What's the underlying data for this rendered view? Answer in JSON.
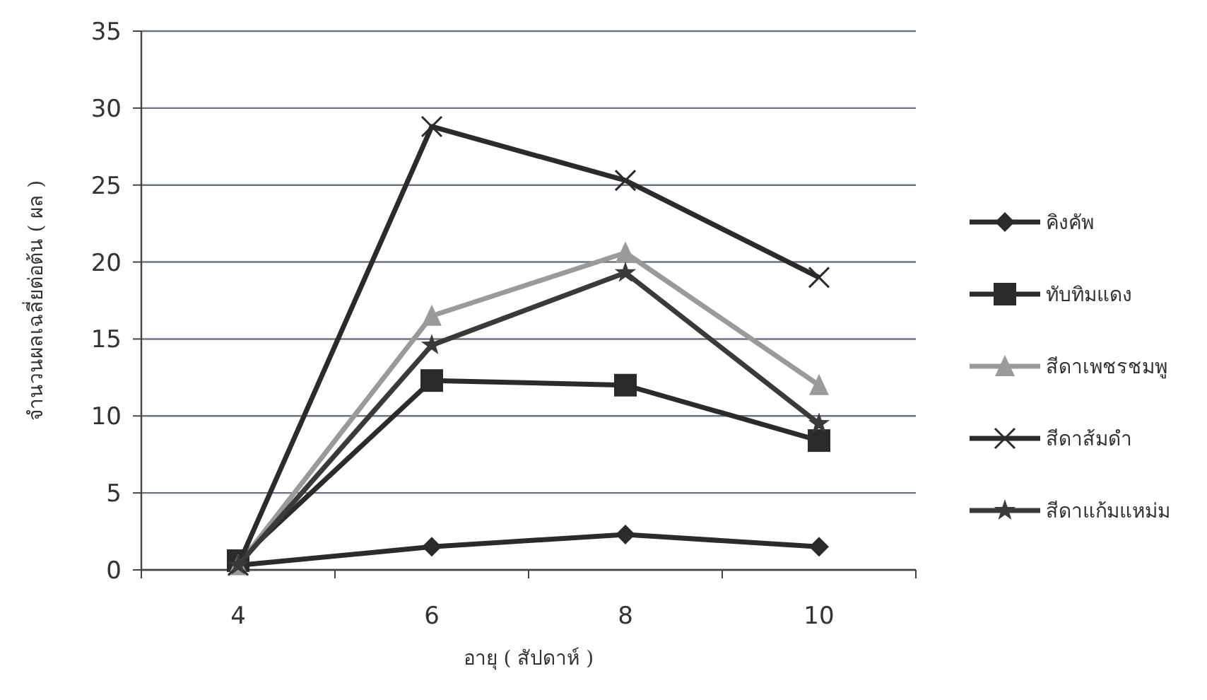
{
  "chart_data": {
    "type": "line",
    "xlabel": "อายุ ( สัปดาห์ )",
    "ylabel": "จำนวนผลเฉลี่ยต่อต้น ( ผล )",
    "categories": [
      "4",
      "6",
      "8",
      "10"
    ],
    "ylim": [
      0,
      35
    ],
    "yticks": [
      0,
      5,
      10,
      15,
      20,
      25,
      30,
      35
    ],
    "grid": "y",
    "legend": "right",
    "series": [
      {
        "name": "คิงคัพ",
        "color": "#2b2b2b",
        "marker": "diamond",
        "values": [
          0.3,
          1.5,
          2.3,
          1.5
        ]
      },
      {
        "name": "ทับทิมแดง",
        "color": "#2b2b2b",
        "marker": "square",
        "values": [
          0.6,
          12.3,
          12,
          8.4
        ]
      },
      {
        "name": "สีดาเพชรชมพู",
        "color": "#9a9a9a",
        "marker": "triangle",
        "values": [
          0.3,
          16.5,
          20.6,
          12
        ]
      },
      {
        "name": "สีดาส้มดำ",
        "color": "#2b2b2b",
        "marker": "cross",
        "values": [
          0.3,
          28.8,
          25.3,
          19
        ]
      },
      {
        "name": "สีดาแก้มแหม่ม",
        "color": "#3a3a3a",
        "marker": "star",
        "values": [
          0.3,
          14.6,
          19.3,
          9.5
        ]
      }
    ]
  }
}
